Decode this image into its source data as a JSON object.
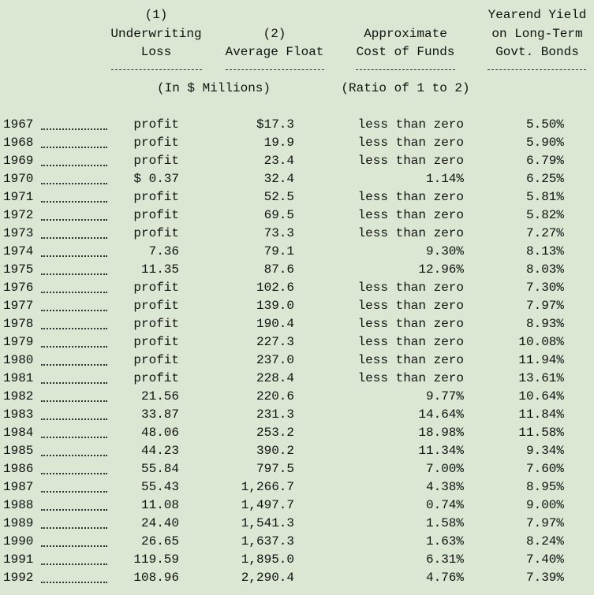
{
  "header": {
    "columns": [
      {
        "lines": [
          "(1)",
          "Underwriting",
          "Loss"
        ]
      },
      {
        "lines": [
          "(2)",
          "Average Float"
        ]
      },
      {
        "lines": [
          "Approximate",
          "Cost of Funds"
        ]
      },
      {
        "lines": [
          "Yearend Yield",
          "on Long-Term",
          "Govt. Bonds"
        ]
      }
    ],
    "units": [
      "(In $ Millions)",
      "(Ratio of 1 to 2)"
    ]
  },
  "table": {
    "rows": [
      [
        "1967",
        "profit",
        "$17.3",
        "less than zero",
        "5.50%"
      ],
      [
        "1968",
        "profit",
        "19.9",
        "less than zero",
        "5.90%"
      ],
      [
        "1969",
        "profit",
        "23.4",
        "less than zero",
        "6.79%"
      ],
      [
        "1970",
        "$ 0.37",
        "32.4",
        "1.14%",
        "6.25%"
      ],
      [
        "1971",
        "profit",
        "52.5",
        "less than zero",
        "5.81%"
      ],
      [
        "1972",
        "profit",
        "69.5",
        "less than zero",
        "5.82%"
      ],
      [
        "1973",
        "profit",
        "73.3",
        "less than zero",
        "7.27%"
      ],
      [
        "1974",
        "7.36",
        "79.1",
        "9.30%",
        "8.13%"
      ],
      [
        "1975",
        "11.35",
        "87.6",
        "12.96%",
        "8.03%"
      ],
      [
        "1976",
        "profit",
        "102.6",
        "less than zero",
        "7.30%"
      ],
      [
        "1977",
        "profit",
        "139.0",
        "less than zero",
        "7.97%"
      ],
      [
        "1978",
        "profit",
        "190.4",
        "less than zero",
        "8.93%"
      ],
      [
        "1979",
        "profit",
        "227.3",
        "less than zero",
        "10.08%"
      ],
      [
        "1980",
        "profit",
        "237.0",
        "less than zero",
        "11.94%"
      ],
      [
        "1981",
        "profit",
        "228.4",
        "less than zero",
        "13.61%"
      ],
      [
        "1982",
        "21.56",
        "220.6",
        "9.77%",
        "10.64%"
      ],
      [
        "1983",
        "33.87",
        "231.3",
        "14.64%",
        "11.84%"
      ],
      [
        "1984",
        "48.06",
        "253.2",
        "18.98%",
        "11.58%"
      ],
      [
        "1985",
        "44.23",
        "390.2",
        "11.34%",
        "9.34%"
      ],
      [
        "1986",
        "55.84",
        "797.5",
        "7.00%",
        "7.60%"
      ],
      [
        "1987",
        "55.43",
        "1,266.7",
        "4.38%",
        "8.95%"
      ],
      [
        "1988",
        "11.08",
        "1,497.7",
        "0.74%",
        "9.00%"
      ],
      [
        "1989",
        "24.40",
        "1,541.3",
        "1.58%",
        "7.97%"
      ],
      [
        "1990",
        "26.65",
        "1,637.3",
        "1.63%",
        "8.24%"
      ],
      [
        "1991",
        "119.59",
        "1,895.0",
        "6.31%",
        "7.40%"
      ],
      [
        "1992",
        "108.96",
        "2,290.4",
        "4.76%",
        "7.39%"
      ]
    ]
  }
}
